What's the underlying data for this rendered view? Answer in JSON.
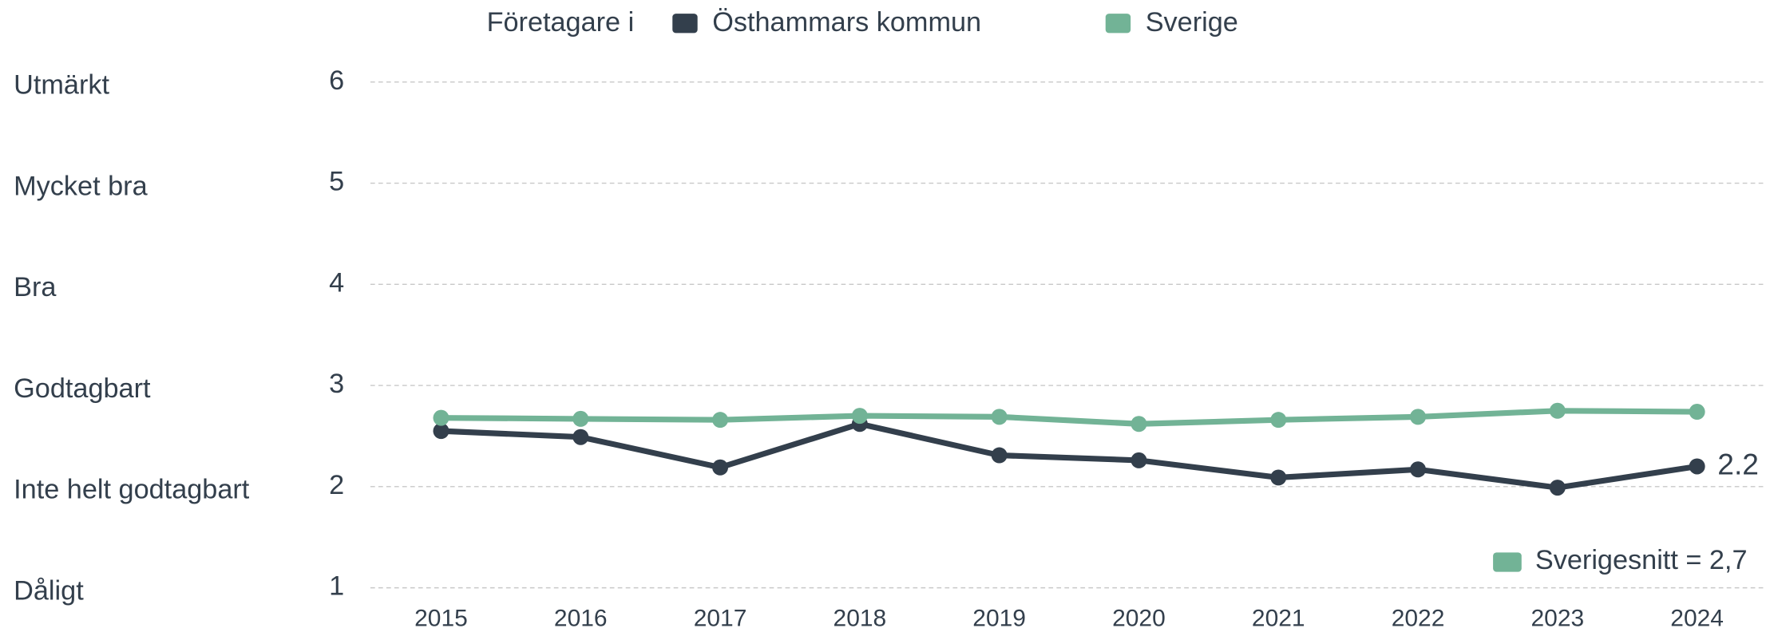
{
  "chart_data": {
    "type": "line",
    "legend_prefix": "Företagare i",
    "categories": [
      "2015",
      "2016",
      "2017",
      "2018",
      "2019",
      "2020",
      "2021",
      "2022",
      "2023",
      "2024"
    ],
    "series": [
      {
        "name": "Östhammars kommun",
        "color": "#333f4c",
        "values": [
          2.55,
          2.49,
          2.19,
          2.62,
          2.31,
          2.26,
          2.09,
          2.17,
          1.99,
          2.2
        ]
      },
      {
        "name": "Sverige",
        "color": "#72b396",
        "values": [
          2.68,
          2.67,
          2.66,
          2.7,
          2.69,
          2.62,
          2.66,
          2.69,
          2.75,
          2.74
        ]
      }
    ],
    "ylim": [
      1,
      6
    ],
    "yticks": [
      1,
      2,
      3,
      4,
      5,
      6
    ],
    "y_labels": [
      "Dåligt",
      "Inte helt godtagbart",
      "Godtagbart",
      "Bra",
      "Mycket bra",
      "Utmärkt"
    ],
    "annotation": "Sverigesnitt = 2,7",
    "annotation_color": "#72b396",
    "grid": true
  }
}
